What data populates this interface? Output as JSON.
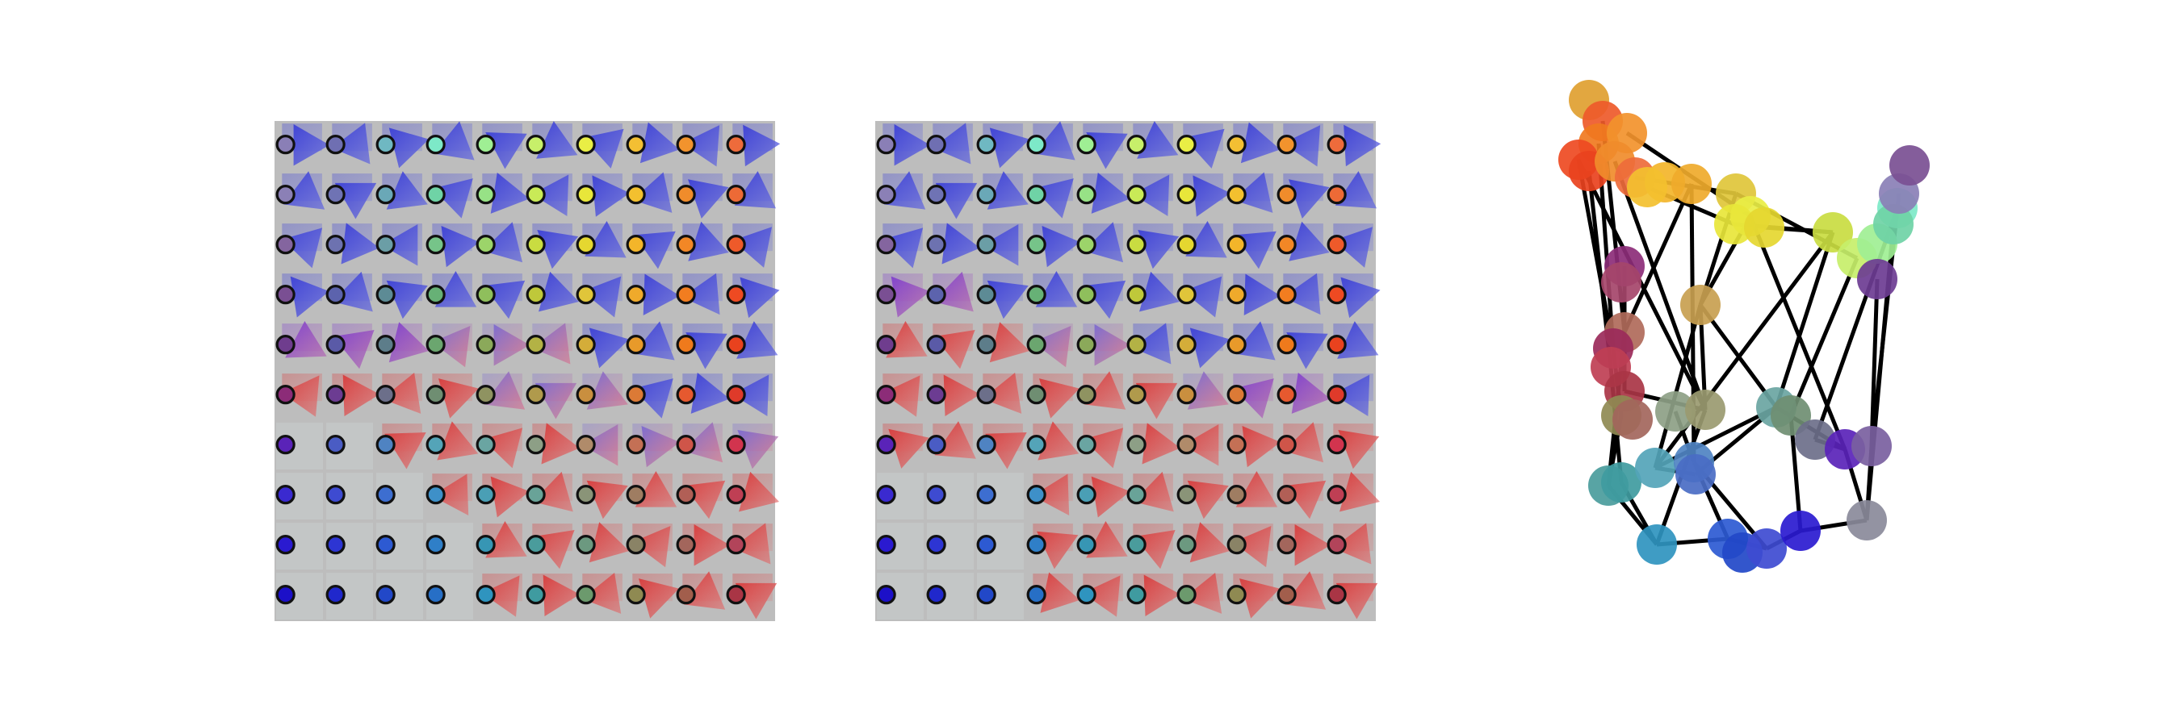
{
  "figure": {
    "panels": [
      {
        "id": "grid-left",
        "kind": "image-grid",
        "rows": 10,
        "cols": 10,
        "background": "#bdbdbd",
        "marker_colors": [
          [
            "#8a7fb6",
            "#6f6fb2",
            "#6fb8c2",
            "#7de9c8",
            "#9fef94",
            "#c7ef6a",
            "#e9ee45",
            "#f3bf33",
            "#f2932d",
            "#ee6b3b"
          ],
          [
            "#8b80b6",
            "#6f73b4",
            "#6aa8b7",
            "#6fd3a6",
            "#97e286",
            "#c9ea57",
            "#e8e63a",
            "#f3c02f",
            "#f08c2b",
            "#ed6a36"
          ],
          [
            "#84659f",
            "#6d72b0",
            "#6b9ea6",
            "#76c489",
            "#9cd46a",
            "#c9dc41",
            "#e5d730",
            "#f3b52a",
            "#f28726",
            "#ee5a2a"
          ],
          [
            "#7a4f93",
            "#5c63ad",
            "#5d8b95",
            "#67b176",
            "#8fbf5c",
            "#bfc83a",
            "#e0c53a",
            "#efaa2b",
            "#f27d20",
            "#ee4a22"
          ],
          [
            "#6f3d8e",
            "#5a5aa7",
            "#5d7d8a",
            "#6ba66f",
            "#8ba95a",
            "#b3b245",
            "#d4ad39",
            "#e89a2a",
            "#ef7a1c",
            "#e9421e"
          ],
          [
            "#8c2c78",
            "#6c3c92",
            "#6c6f8a",
            "#6f8e72",
            "#8f9361",
            "#b09a4c",
            "#c98f3f",
            "#dc7a36",
            "#e6592f",
            "#df3a2a"
          ],
          [
            "#5a23b8",
            "#4a5cc4",
            "#4f83c2",
            "#54a4b8",
            "#6aa5a2",
            "#8d9f86",
            "#b08b6a",
            "#c47055",
            "#cf5549",
            "#d2344e"
          ],
          [
            "#3a2ad0",
            "#3e4bd1",
            "#3d6ed0",
            "#3e90c8",
            "#4a9fb5",
            "#69a398",
            "#8a9478",
            "#9f7d62",
            "#b15f56",
            "#bf3f54"
          ],
          [
            "#2a1ad0",
            "#2d35d3",
            "#2d5ad2",
            "#2f7fc8",
            "#3796b4",
            "#4a9c9c",
            "#6c9980",
            "#8a8366",
            "#a3665c",
            "#b2445a"
          ],
          [
            "#1c10c8",
            "#2028cc",
            "#2248c8",
            "#276fc6",
            "#2f94bf",
            "#3f9ba0",
            "#6c9a6d",
            "#8f8a52",
            "#a25e4c",
            "#a93545"
          ]
        ],
        "tile_shading": [
          [
            "blue",
            "blue",
            "blue",
            "blue",
            "blue",
            "blue",
            "blue",
            "blue",
            "blue",
            "blue"
          ],
          [
            "blue",
            "blue",
            "blue",
            "blue",
            "blue",
            "blue",
            "blue",
            "blue",
            "blue",
            "blue"
          ],
          [
            "blue",
            "blue",
            "blue",
            "blue",
            "blue",
            "blue",
            "blue",
            "blue",
            "blue",
            "blue"
          ],
          [
            "blue",
            "blue",
            "blue",
            "blue",
            "blue",
            "blue",
            "blue",
            "blue",
            "blue",
            "blue"
          ],
          [
            "purple",
            "purple",
            "purple",
            "mix",
            "mix",
            "mix",
            "blue",
            "blue",
            "blue",
            "blue"
          ],
          [
            "red",
            "red",
            "red",
            "red",
            "mix",
            "mix",
            "mix",
            "blue",
            "blue",
            "blue"
          ],
          [
            "light",
            "light",
            "red",
            "red",
            "red",
            "red",
            "mix",
            "mix",
            "mix",
            "mix"
          ],
          [
            "light",
            "light",
            "light",
            "red",
            "red",
            "red",
            "red",
            "red",
            "red",
            "red"
          ],
          [
            "light",
            "light",
            "light",
            "light",
            "red",
            "red",
            "red",
            "red",
            "red",
            "red"
          ],
          [
            "light",
            "light",
            "light",
            "light",
            "red",
            "red",
            "red",
            "red",
            "red",
            "red"
          ]
        ]
      },
      {
        "id": "grid-middle",
        "kind": "image-grid",
        "rows": 10,
        "cols": 10,
        "background": "#bdbdbd",
        "marker_colors": [
          [
            "#8a7fb6",
            "#6f6fb2",
            "#6fb8c2",
            "#7de9c8",
            "#9fef94",
            "#c7ef6a",
            "#e9ee45",
            "#f3bf33",
            "#f2932d",
            "#ee6b3b"
          ],
          [
            "#8b80b6",
            "#6f73b4",
            "#6aa8b7",
            "#6fd3a6",
            "#97e286",
            "#c9ea57",
            "#e8e63a",
            "#f3c02f",
            "#f08c2b",
            "#ed6a36"
          ],
          [
            "#84659f",
            "#6d72b0",
            "#6b9ea6",
            "#76c489",
            "#9cd46a",
            "#c9dc41",
            "#e5d730",
            "#f3b52a",
            "#f28726",
            "#ee5a2a"
          ],
          [
            "#7a4f93",
            "#5c63ad",
            "#5d8b95",
            "#67b176",
            "#8fbf5c",
            "#bfc83a",
            "#e0c53a",
            "#efaa2b",
            "#f27d20",
            "#ee4a22"
          ],
          [
            "#6f3d8e",
            "#5a5aa7",
            "#5d7d8a",
            "#6ba66f",
            "#8ba95a",
            "#b3b245",
            "#d4ad39",
            "#e89a2a",
            "#ef7a1c",
            "#e9421e"
          ],
          [
            "#8c2c78",
            "#6c3c92",
            "#6c6f8a",
            "#6f8e72",
            "#8f9361",
            "#b09a4c",
            "#c98f3f",
            "#dc7a36",
            "#e6592f",
            "#df3a2a"
          ],
          [
            "#5a23b8",
            "#4a5cc4",
            "#4f83c2",
            "#54a4b8",
            "#6aa5a2",
            "#8d9f86",
            "#b08b6a",
            "#c47055",
            "#cf5549",
            "#d2344e"
          ],
          [
            "#3a2ad0",
            "#3e4bd1",
            "#3d6ed0",
            "#3e90c8",
            "#4a9fb5",
            "#69a398",
            "#8a9478",
            "#9f7d62",
            "#b15f56",
            "#bf3f54"
          ],
          [
            "#2a1ad0",
            "#2d35d3",
            "#2d5ad2",
            "#2f7fc8",
            "#3796b4",
            "#4a9c9c",
            "#6c9980",
            "#8a8366",
            "#a3665c",
            "#b2445a"
          ],
          [
            "#1c10c8",
            "#2028cc",
            "#2248c8",
            "#276fc6",
            "#2f94bf",
            "#3f9ba0",
            "#6c9a6d",
            "#8f8a52",
            "#a25e4c",
            "#a93545"
          ]
        ],
        "tile_shading": [
          [
            "blue",
            "blue",
            "blue",
            "blue",
            "blue",
            "blue",
            "blue",
            "blue",
            "blue",
            "blue"
          ],
          [
            "blue",
            "blue",
            "blue",
            "blue",
            "blue",
            "blue",
            "blue",
            "blue",
            "blue",
            "blue"
          ],
          [
            "blue",
            "blue",
            "blue",
            "blue",
            "blue",
            "blue",
            "blue",
            "blue",
            "blue",
            "blue"
          ],
          [
            "purple",
            "purple",
            "blue",
            "blue",
            "blue",
            "blue",
            "blue",
            "blue",
            "blue",
            "blue"
          ],
          [
            "red",
            "red",
            "red",
            "mix",
            "mix",
            "blue",
            "blue",
            "blue",
            "blue",
            "blue"
          ],
          [
            "red",
            "red",
            "red",
            "red",
            "red",
            "red",
            "mix",
            "purple",
            "purple",
            "blue"
          ],
          [
            "red",
            "red",
            "red",
            "red",
            "red",
            "red",
            "red",
            "red",
            "red",
            "red"
          ],
          [
            "light",
            "light",
            "light",
            "red",
            "red",
            "red",
            "red",
            "red",
            "red",
            "red"
          ],
          [
            "light",
            "light",
            "light",
            "red",
            "red",
            "red",
            "red",
            "red",
            "red",
            "red"
          ],
          [
            "light",
            "light",
            "light",
            "red",
            "red",
            "red",
            "red",
            "red",
            "red",
            "red"
          ]
        ]
      },
      {
        "id": "graph-right",
        "kind": "node-link",
        "nodes": [
          {
            "c": "#e0a030"
          },
          {
            "c": "#ee5a2a"
          },
          {
            "c": "#f07a20"
          },
          {
            "c": "#f2932d"
          },
          {
            "c": "#ee4a22"
          },
          {
            "c": "#e9421e"
          },
          {
            "c": "#f08c2b"
          },
          {
            "c": "#ee6b3b"
          },
          {
            "c": "#f3b52a"
          },
          {
            "c": "#efaa2b"
          },
          {
            "c": "#f3c02f"
          },
          {
            "c": "#e0c53a"
          },
          {
            "c": "#e9ee45"
          },
          {
            "c": "#e8e63a"
          },
          {
            "c": "#e5d730"
          },
          {
            "c": "#c9dc41"
          },
          {
            "c": "#c7ef6a"
          },
          {
            "c": "#9fef94"
          },
          {
            "c": "#7de9c8"
          },
          {
            "c": "#6fd3a6"
          },
          {
            "c": "#8a7fb6"
          },
          {
            "c": "#7a4f93"
          },
          {
            "c": "#8c2c78"
          },
          {
            "c": "#a5456a"
          },
          {
            "c": "#c8a050"
          },
          {
            "c": "#b06a5a"
          },
          {
            "c": "#9b2a5a"
          },
          {
            "c": "#bf3f54"
          },
          {
            "c": "#a93545"
          },
          {
            "c": "#8f8a52"
          },
          {
            "c": "#a3665c"
          },
          {
            "c": "#6aa5a2"
          },
          {
            "c": "#8d9f86"
          },
          {
            "c": "#9a9a70"
          },
          {
            "c": "#6f8e72"
          },
          {
            "c": "#4a9c9c"
          },
          {
            "c": "#3f9ba0"
          },
          {
            "c": "#54a4b8"
          },
          {
            "c": "#4f83c2"
          },
          {
            "c": "#4a6cc4"
          },
          {
            "c": "#6c6f8a"
          },
          {
            "c": "#5a23b8"
          },
          {
            "c": "#2f94bf"
          },
          {
            "c": "#2d5ad2"
          },
          {
            "c": "#2248c8"
          },
          {
            "c": "#3e4bd1"
          },
          {
            "c": "#2a1ad0"
          },
          {
            "c": "#8a8a9a"
          },
          {
            "c": "#7a5f9f"
          },
          {
            "c": "#6c3c92"
          }
        ],
        "edge_color": "#000000"
      }
    ]
  }
}
